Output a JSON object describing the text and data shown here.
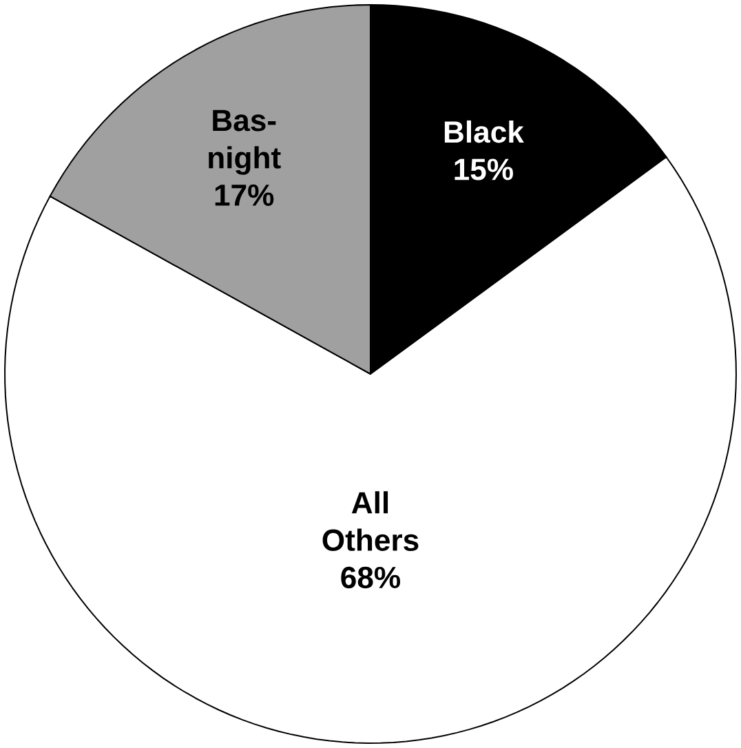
{
  "chart_data": {
    "type": "pie",
    "categories": [
      "Black",
      "All Others",
      "Bas-night"
    ],
    "values": [
      15,
      68,
      17
    ],
    "colors": [
      "#000000",
      "#ffffff",
      "#a0a0a0"
    ],
    "value_labels": [
      "15%",
      "68%",
      "17%"
    ]
  }
}
